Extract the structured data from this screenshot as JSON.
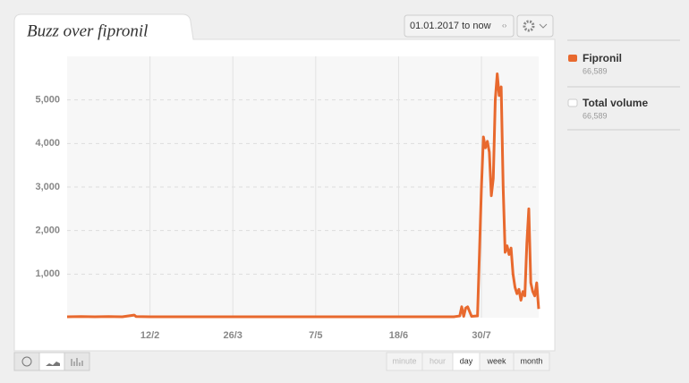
{
  "chart_data": {
    "type": "line",
    "title": "Buzz over fipronil",
    "x": [
      0,
      7,
      14,
      21,
      28,
      34,
      35,
      42,
      49,
      56,
      63,
      70,
      77,
      84,
      91,
      98,
      105,
      112,
      119,
      126,
      133,
      140,
      147,
      154,
      161,
      168,
      175,
      182,
      189,
      196,
      199,
      200,
      201,
      202,
      203,
      205,
      208,
      209,
      210,
      211,
      212,
      213,
      214,
      215,
      216,
      217,
      218,
      219,
      220,
      221,
      222,
      223,
      224,
      225,
      226,
      227,
      228,
      229,
      230,
      231,
      232,
      233,
      234,
      235,
      236,
      237,
      238,
      239
    ],
    "series": [
      {
        "name": "Fipronil",
        "color": "#e8692e",
        "total": "66,589",
        "values": [
          20,
          25,
          20,
          25,
          20,
          60,
          25,
          20,
          20,
          20,
          20,
          20,
          20,
          20,
          20,
          20,
          20,
          20,
          20,
          20,
          20,
          20,
          20,
          20,
          20,
          20,
          20,
          20,
          20,
          20,
          40,
          250,
          30,
          220,
          250,
          30,
          40,
          1500,
          3000,
          4150,
          3900,
          4050,
          3800,
          2800,
          3200,
          5000,
          5600,
          5100,
          5300,
          3000,
          1500,
          1650,
          1450,
          1600,
          1000,
          700,
          550,
          650,
          400,
          600,
          500,
          1700,
          2500,
          800,
          600,
          500,
          800,
          200
        ]
      }
    ],
    "legend_extra": {
      "name": "Total volume",
      "color": "#ffffff",
      "total": "66,589"
    },
    "xlim": [
      0,
      239
    ],
    "xticks": [
      {
        "value": 42,
        "label": "12/2"
      },
      {
        "value": 84,
        "label": "26/3"
      },
      {
        "value": 126,
        "label": "7/5"
      },
      {
        "value": 168,
        "label": "18/6"
      },
      {
        "value": 210,
        "label": "30/7"
      }
    ],
    "ylim": [
      0,
      6000
    ],
    "yticks": [
      {
        "value": 1000,
        "label": "1,000"
      },
      {
        "value": 2000,
        "label": "2,000"
      },
      {
        "value": 3000,
        "label": "3,000"
      },
      {
        "value": 4000,
        "label": "4,000"
      },
      {
        "value": 5000,
        "label": "5,000"
      }
    ],
    "grid": true
  },
  "ui": {
    "date_range": "01.01.2017 to now",
    "resolutions": [
      "minute",
      "hour",
      "day",
      "week",
      "month"
    ],
    "active_resolution": 2
  }
}
